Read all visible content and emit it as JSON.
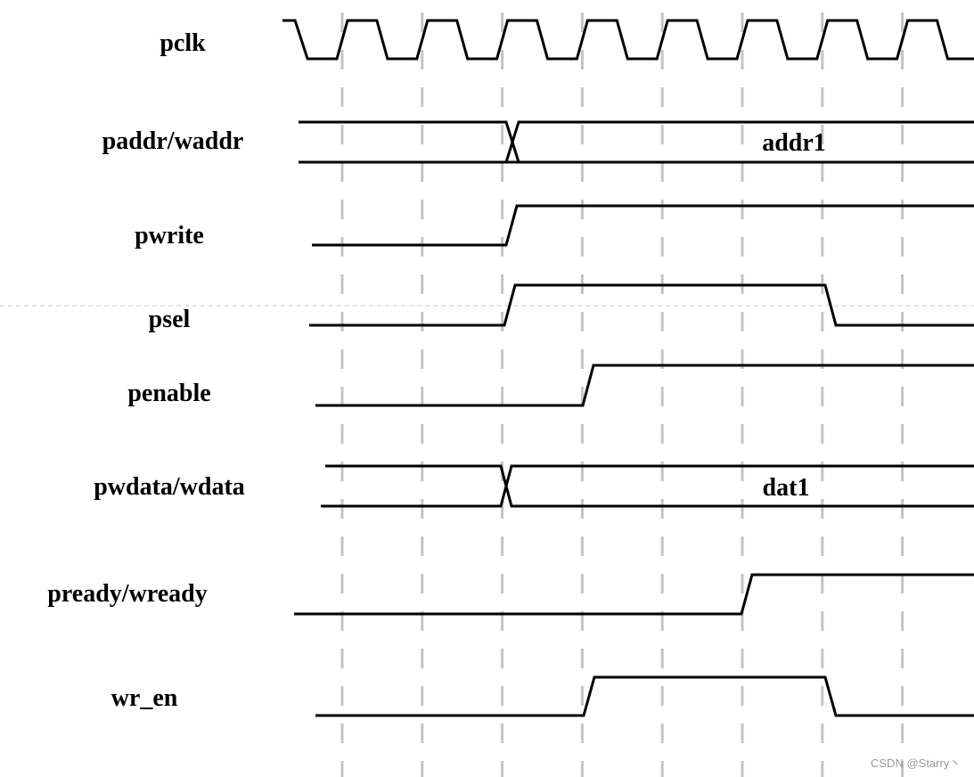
{
  "signals": {
    "pclk": "pclk",
    "paddr": "paddr/waddr",
    "pwrite": "pwrite",
    "psel": "psel",
    "penable": "penable",
    "pwdata": "pwdata/wdata",
    "pready": "pready/wready",
    "wr_en": "wr_en"
  },
  "bus_values": {
    "paddr": "addr1",
    "pwdata": "dat1"
  },
  "watermark": "CSDN @Starry丶"
}
